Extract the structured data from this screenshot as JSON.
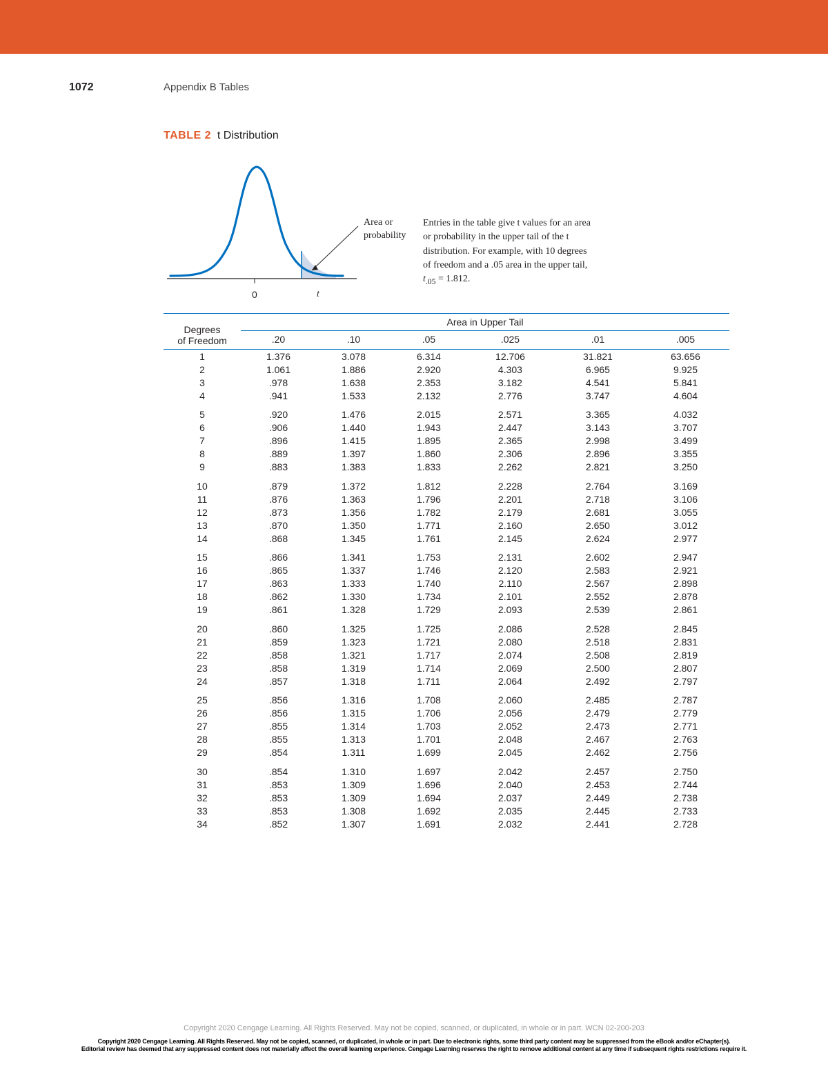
{
  "page": {
    "number": "1072",
    "breadcrumb": "Appendix B   Tables",
    "top_bar_color": "#e25a2b"
  },
  "caption": {
    "prefix": "TABLE 2",
    "title": "t Distribution",
    "prefix_color": "#e25a2b"
  },
  "figure": {
    "curve_color": "#0070c0",
    "fill_color": "#cfd9ea",
    "axis_color": "#231f20",
    "label_area": "Area or",
    "label_prob": "probability",
    "zero_label": "0",
    "t_label": "t",
    "description_lines": [
      "Entries in the table give t values for an area",
      "or probability in the upper tail of the t",
      "distribution. For example, with 10 degrees",
      "of freedom and a .05 area in the upper tail,",
      "t.05 = 1.812."
    ],
    "t05_prefix": "t",
    "t05_sub": ".05",
    "t05_eq": " = 1.812."
  },
  "table": {
    "group_header": "Area in Upper Tail",
    "df_header_line1": "Degrees",
    "df_header_line2": "of Freedom",
    "columns": [
      ".20",
      ".10",
      ".05",
      ".025",
      ".01",
      ".005"
    ],
    "rule_color": "#0070c0",
    "blocks": [
      [
        {
          "df": "1",
          "v": [
            "1.376",
            "3.078",
            "6.314",
            "12.706",
            "31.821",
            "63.656"
          ]
        },
        {
          "df": "2",
          "v": [
            "1.061",
            "1.886",
            "2.920",
            "4.303",
            "6.965",
            "9.925"
          ]
        },
        {
          "df": "3",
          "v": [
            ".978",
            "1.638",
            "2.353",
            "3.182",
            "4.541",
            "5.841"
          ]
        },
        {
          "df": "4",
          "v": [
            ".941",
            "1.533",
            "2.132",
            "2.776",
            "3.747",
            "4.604"
          ]
        }
      ],
      [
        {
          "df": "5",
          "v": [
            ".920",
            "1.476",
            "2.015",
            "2.571",
            "3.365",
            "4.032"
          ]
        },
        {
          "df": "6",
          "v": [
            ".906",
            "1.440",
            "1.943",
            "2.447",
            "3.143",
            "3.707"
          ]
        },
        {
          "df": "7",
          "v": [
            ".896",
            "1.415",
            "1.895",
            "2.365",
            "2.998",
            "3.499"
          ]
        },
        {
          "df": "8",
          "v": [
            ".889",
            "1.397",
            "1.860",
            "2.306",
            "2.896",
            "3.355"
          ]
        },
        {
          "df": "9",
          "v": [
            ".883",
            "1.383",
            "1.833",
            "2.262",
            "2.821",
            "3.250"
          ]
        }
      ],
      [
        {
          "df": "10",
          "v": [
            ".879",
            "1.372",
            "1.812",
            "2.228",
            "2.764",
            "3.169"
          ]
        },
        {
          "df": "11",
          "v": [
            ".876",
            "1.363",
            "1.796",
            "2.201",
            "2.718",
            "3.106"
          ]
        },
        {
          "df": "12",
          "v": [
            ".873",
            "1.356",
            "1.782",
            "2.179",
            "2.681",
            "3.055"
          ]
        },
        {
          "df": "13",
          "v": [
            ".870",
            "1.350",
            "1.771",
            "2.160",
            "2.650",
            "3.012"
          ]
        },
        {
          "df": "14",
          "v": [
            ".868",
            "1.345",
            "1.761",
            "2.145",
            "2.624",
            "2.977"
          ]
        }
      ],
      [
        {
          "df": "15",
          "v": [
            ".866",
            "1.341",
            "1.753",
            "2.131",
            "2.602",
            "2.947"
          ]
        },
        {
          "df": "16",
          "v": [
            ".865",
            "1.337",
            "1.746",
            "2.120",
            "2.583",
            "2.921"
          ]
        },
        {
          "df": "17",
          "v": [
            ".863",
            "1.333",
            "1.740",
            "2.110",
            "2.567",
            "2.898"
          ]
        },
        {
          "df": "18",
          "v": [
            ".862",
            "1.330",
            "1.734",
            "2.101",
            "2.552",
            "2.878"
          ]
        },
        {
          "df": "19",
          "v": [
            ".861",
            "1.328",
            "1.729",
            "2.093",
            "2.539",
            "2.861"
          ]
        }
      ],
      [
        {
          "df": "20",
          "v": [
            ".860",
            "1.325",
            "1.725",
            "2.086",
            "2.528",
            "2.845"
          ]
        },
        {
          "df": "21",
          "v": [
            ".859",
            "1.323",
            "1.721",
            "2.080",
            "2.518",
            "2.831"
          ]
        },
        {
          "df": "22",
          "v": [
            ".858",
            "1.321",
            "1.717",
            "2.074",
            "2.508",
            "2.819"
          ]
        },
        {
          "df": "23",
          "v": [
            ".858",
            "1.319",
            "1.714",
            "2.069",
            "2.500",
            "2.807"
          ]
        },
        {
          "df": "24",
          "v": [
            ".857",
            "1.318",
            "1.711",
            "2.064",
            "2.492",
            "2.797"
          ]
        }
      ],
      [
        {
          "df": "25",
          "v": [
            ".856",
            "1.316",
            "1.708",
            "2.060",
            "2.485",
            "2.787"
          ]
        },
        {
          "df": "26",
          "v": [
            ".856",
            "1.315",
            "1.706",
            "2.056",
            "2.479",
            "2.779"
          ]
        },
        {
          "df": "27",
          "v": [
            ".855",
            "1.314",
            "1.703",
            "2.052",
            "2.473",
            "2.771"
          ]
        },
        {
          "df": "28",
          "v": [
            ".855",
            "1.313",
            "1.701",
            "2.048",
            "2.467",
            "2.763"
          ]
        },
        {
          "df": "29",
          "v": [
            ".854",
            "1.311",
            "1.699",
            "2.045",
            "2.462",
            "2.756"
          ]
        }
      ],
      [
        {
          "df": "30",
          "v": [
            ".854",
            "1.310",
            "1.697",
            "2.042",
            "2.457",
            "2.750"
          ]
        },
        {
          "df": "31",
          "v": [
            ".853",
            "1.309",
            "1.696",
            "2.040",
            "2.453",
            "2.744"
          ]
        },
        {
          "df": "32",
          "v": [
            ".853",
            "1.309",
            "1.694",
            "2.037",
            "2.449",
            "2.738"
          ]
        },
        {
          "df": "33",
          "v": [
            ".853",
            "1.308",
            "1.692",
            "2.035",
            "2.445",
            "2.733"
          ]
        },
        {
          "df": "34",
          "v": [
            ".852",
            "1.307",
            "1.691",
            "2.032",
            "2.441",
            "2.728"
          ]
        }
      ]
    ]
  },
  "footer": {
    "copyright1": "Copyright 2020 Cengage Learning. All Rights Reserved. May not be copied, scanned, or duplicated, in whole or in part.  WCN 02-200-203",
    "copyright2a": "Copyright 2020 Cengage Learning. All Rights Reserved. May not be copied, scanned, or duplicated, in whole or in part. Due to electronic rights, some third party content may be suppressed from the eBook and/or eChapter(s).",
    "copyright2b": "Editorial review has deemed that any suppressed content does not materially affect the overall learning experience. Cengage Learning reserves the right to remove additional content at any time if subsequent rights restrictions require it."
  }
}
